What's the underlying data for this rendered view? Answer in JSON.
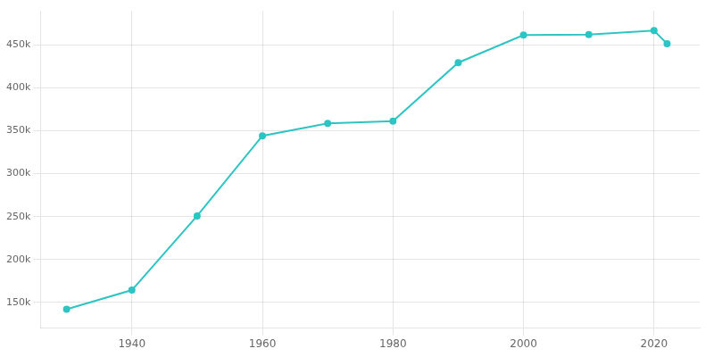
{
  "chart_data": {
    "type": "line",
    "x": [
      1930,
      1940,
      1950,
      1960,
      1970,
      1980,
      1990,
      2000,
      2010,
      2020,
      2022
    ],
    "values": [
      142032,
      164271,
      250767,
      344168,
      358633,
      361334,
      429433,
      461522,
      462257,
      466742,
      451483
    ],
    "color": "#2EC4C4",
    "marker": "circle",
    "xlim": [
      1926,
      2027
    ],
    "xticks": [
      1940,
      1960,
      1980,
      2000,
      2020
    ],
    "ylim": [
      120000,
      490000
    ],
    "yticks": [
      {
        "value": 150000,
        "label": "150k"
      },
      {
        "value": 200000,
        "label": "200k"
      },
      {
        "value": 250000,
        "label": "250k"
      },
      {
        "value": 300000,
        "label": "300k"
      },
      {
        "value": 350000,
        "label": "350k"
      },
      {
        "value": 400000,
        "label": "400k"
      },
      {
        "value": 450000,
        "label": "450k"
      }
    ],
    "grid": true
  }
}
